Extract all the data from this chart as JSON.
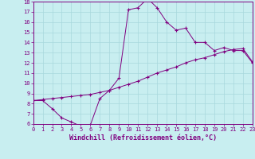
{
  "xlabel": "Windchill (Refroidissement éolien,°C)",
  "background_color": "#c8eef0",
  "grid_color": "#a8d8dc",
  "line_color": "#800080",
  "spine_color": "#800080",
  "x_line1": [
    0,
    1,
    2,
    3,
    4,
    5,
    6,
    7,
    8,
    9,
    10,
    11,
    12,
    13,
    14,
    15,
    16,
    17,
    18,
    19,
    20,
    21,
    22,
    23
  ],
  "y_line1": [
    8.3,
    8.3,
    7.5,
    6.6,
    6.2,
    5.8,
    5.9,
    8.5,
    9.3,
    10.5,
    17.2,
    17.4,
    18.3,
    17.4,
    16.0,
    15.2,
    15.4,
    14.0,
    14.0,
    13.2,
    13.5,
    13.2,
    13.2,
    12.0
  ],
  "x_line2": [
    0,
    1,
    2,
    3,
    4,
    5,
    6,
    7,
    8,
    9,
    10,
    11,
    12,
    13,
    14,
    15,
    16,
    17,
    18,
    19,
    20,
    21,
    22,
    23
  ],
  "y_line2": [
    8.3,
    8.4,
    8.5,
    8.6,
    8.7,
    8.8,
    8.9,
    9.1,
    9.3,
    9.6,
    9.9,
    10.2,
    10.6,
    11.0,
    11.3,
    11.6,
    12.0,
    12.3,
    12.5,
    12.8,
    13.1,
    13.3,
    13.4,
    12.1
  ],
  "ylim": [
    6,
    18
  ],
  "xlim": [
    0,
    23
  ],
  "yticks": [
    6,
    7,
    8,
    9,
    10,
    11,
    12,
    13,
    14,
    15,
    16,
    17,
    18
  ],
  "xticks": [
    0,
    1,
    2,
    3,
    4,
    5,
    6,
    7,
    8,
    9,
    10,
    11,
    12,
    13,
    14,
    15,
    16,
    17,
    18,
    19,
    20,
    21,
    22,
    23
  ],
  "tick_fontsize": 5.0,
  "xlabel_fontsize": 6.0,
  "marker": "+",
  "linewidth": 0.7,
  "markersize": 3.5,
  "markeredgewidth": 0.8
}
